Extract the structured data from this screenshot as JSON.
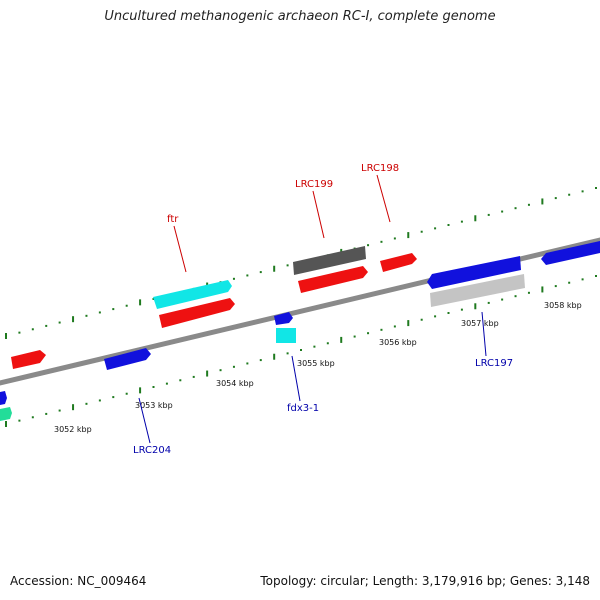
{
  "title": "Uncultured methanogenic archaeon RC-I, complete genome",
  "footer": {
    "accession": "Accession: NC_009464",
    "summary": "Topology: circular; Length: 3,179,916 bp; Genes: 3,148"
  },
  "colors": {
    "backbone": "#8a8a8a",
    "ticks": "#1f7a1f",
    "red": "#ee1111",
    "blue": "#1111dd",
    "cyan": "#11e6e6",
    "darkgray": "#555555",
    "lightgray": "#c4c4c4",
    "teal": "#22dd99",
    "label_red": "#cc0000",
    "label_blue": "#0000aa"
  },
  "scale_labels": [
    "3052 kbp",
    "3053 kbp",
    "3054 kbp",
    "3055 kbp",
    "3056 kbp",
    "3057 kbp",
    "3058 kbp"
  ],
  "gene_labels": [
    {
      "name": "ftr",
      "color": "label_red"
    },
    {
      "name": "LRC199",
      "color": "label_red"
    },
    {
      "name": "LRC198",
      "color": "label_red"
    },
    {
      "name": "LRC197",
      "color": "label_blue"
    },
    {
      "name": "fdx3-1",
      "color": "label_blue"
    },
    {
      "name": "LRC204",
      "color": "label_blue"
    }
  ]
}
